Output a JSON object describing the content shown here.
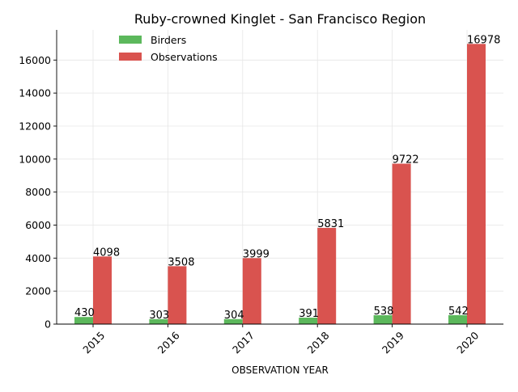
{
  "chart_data": {
    "type": "bar",
    "title": "Ruby-crowned Kinglet - San Francisco Region",
    "xlabel": "OBSERVATION YEAR",
    "ylabel": "",
    "categories": [
      "2015",
      "2016",
      "2017",
      "2018",
      "2019",
      "2020"
    ],
    "series": [
      {
        "name": "Birders",
        "color": "#5cb85c",
        "values": [
          430,
          303,
          304,
          391,
          538,
          542
        ]
      },
      {
        "name": "Observations",
        "color": "#d9534f",
        "values": [
          4098,
          3508,
          3999,
          5831,
          9722,
          16978
        ]
      }
    ],
    "ylim": [
      0,
      17827
    ],
    "yticks": [
      0,
      2000,
      4000,
      6000,
      8000,
      10000,
      12000,
      14000,
      16000
    ],
    "grid": true,
    "legend_position": "top-left",
    "data_labels": true
  }
}
